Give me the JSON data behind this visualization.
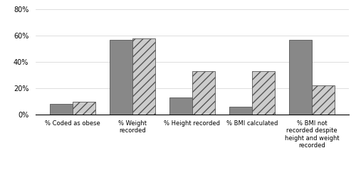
{
  "categories": [
    "% Coded as obese",
    "% Weight\nrecorded",
    "% Height recorded",
    "% BMI calculated",
    "% BMI not\nrecorded despite\nheight and weight\nrecorded"
  ],
  "pre_values": [
    8,
    57,
    13,
    6,
    57
  ],
  "post_values": [
    10,
    58,
    33,
    33,
    22
  ],
  "pre_color": "#888888",
  "post_color": "#cccccc",
  "post_hatch": "///",
  "ylim": [
    0,
    80
  ],
  "yticks": [
    0,
    20,
    40,
    60,
    80
  ],
  "ytick_labels": [
    "0%",
    "20%",
    "40%",
    "60%",
    "80%"
  ],
  "bar_width": 0.38,
  "edge_color": "#555555"
}
